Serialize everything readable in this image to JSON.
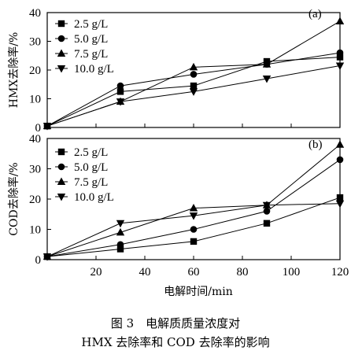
{
  "chart_data": [
    {
      "type": "line",
      "panel_label": "(a)",
      "ylabel": "HMX去除率/%",
      "xlabel": "",
      "x": [
        0,
        30,
        60,
        90,
        120
      ],
      "xlim": [
        0,
        120
      ],
      "ylim": [
        0,
        40
      ],
      "xticks": [
        20,
        40,
        60,
        80,
        100,
        120
      ],
      "yticks": [
        0,
        10,
        20,
        30,
        40
      ],
      "show_x_tick_labels": false,
      "grid": false,
      "legend_position": "top-left",
      "series": [
        {
          "name": "2.5 g/L",
          "marker": "square",
          "values": [
            0.5,
            12.5,
            14.5,
            23,
            24.5
          ]
        },
        {
          "name": "5.0 g/L",
          "marker": "circle",
          "values": [
            0.5,
            14.5,
            18.5,
            22,
            26
          ]
        },
        {
          "name": "7.5 g/L",
          "marker": "triangle-up",
          "values": [
            0.5,
            9,
            21,
            22,
            37
          ]
        },
        {
          "name": "10.0 g/L",
          "marker": "triangle-down",
          "values": [
            0.5,
            9,
            12.5,
            17,
            21.5
          ]
        }
      ]
    },
    {
      "type": "line",
      "panel_label": "(b)",
      "ylabel": "COD去除率/%",
      "xlabel": "电解时间/min",
      "x": [
        0,
        30,
        60,
        90,
        120
      ],
      "xlim": [
        0,
        120
      ],
      "ylim": [
        0,
        40
      ],
      "xticks": [
        20,
        40,
        60,
        80,
        100,
        120
      ],
      "yticks": [
        0,
        10,
        20,
        30,
        40
      ],
      "show_x_tick_labels": true,
      "grid": false,
      "legend_position": "top-left",
      "series": [
        {
          "name": "2.5 g/L",
          "marker": "square",
          "values": [
            1,
            3.5,
            6,
            12,
            20.5
          ]
        },
        {
          "name": "5.0 g/L",
          "marker": "circle",
          "values": [
            1,
            5,
            10,
            16,
            33
          ]
        },
        {
          "name": "7.5 g/L",
          "marker": "triangle-up",
          "values": [
            1,
            9,
            17,
            18,
            38
          ]
        },
        {
          "name": "10.0 g/L",
          "marker": "triangle-down",
          "values": [
            1,
            12,
            14.5,
            18,
            18.5
          ]
        }
      ]
    }
  ],
  "caption": {
    "line1": "图 3　电解质质量浓度对",
    "line2": "HMX 去除率和 COD 去除率的影响"
  }
}
